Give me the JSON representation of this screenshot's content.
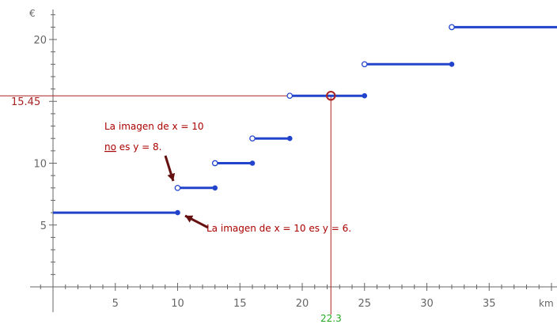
{
  "chart_data": {
    "type": "line",
    "title": "",
    "xlabel": "km",
    "ylabel": "€",
    "xlim": [
      0,
      41
    ],
    "ylim": [
      0,
      23
    ],
    "grid": false,
    "x_ticks": [
      5,
      10,
      15,
      20,
      25,
      30,
      35
    ],
    "y_ticks": [
      5,
      10,
      20
    ],
    "series": [
      {
        "segments": [
          {
            "x0": 0,
            "x1": 10,
            "y": 6,
            "open_left": false,
            "closed_right": true
          },
          {
            "x0": 10,
            "x1": 13,
            "y": 8,
            "open_left": true,
            "closed_right": true
          },
          {
            "x0": 13,
            "x1": 16,
            "y": 10,
            "open_left": true,
            "closed_right": true
          },
          {
            "x0": 16,
            "x1": 19,
            "y": 12,
            "open_left": true,
            "closed_right": true
          },
          {
            "x0": 19,
            "x1": 25,
            "y": 15.45,
            "open_left": true,
            "closed_right": true
          },
          {
            "x0": 25,
            "x1": 32,
            "y": 18,
            "open_left": true,
            "closed_right": true
          },
          {
            "x0": 32,
            "x1": 41,
            "y": 21,
            "open_left": true,
            "closed_right": false
          }
        ]
      }
    ],
    "highlight": {
      "x": 22.3,
      "y": 15.45,
      "x_label": "22.3",
      "y_label": "15.45"
    },
    "annotations": {
      "upper": {
        "line1": "La imagen de x = 10",
        "line2_underlined": "no",
        "line2_rest": " es y = 8."
      },
      "lower": "La imagen de x = 10 es y = 6."
    }
  },
  "colors": {
    "step": "#2244cc",
    "guide": "#aa2222",
    "axis": "#666666",
    "highlight_x": "#22aa22",
    "arrow": "#661111"
  }
}
